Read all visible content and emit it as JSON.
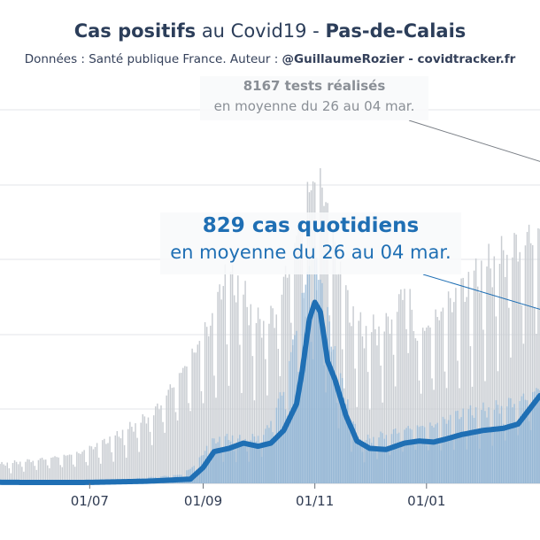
{
  "title": {
    "bold_1": "Cas positifs",
    "normal_1": " au Covid19 - ",
    "bold_2": "Pas-de-Calais"
  },
  "subtitle": {
    "normal": "Données : Santé publique France. Auteur : ",
    "bold": "@GuillaumeRozier - covidtracker.fr"
  },
  "annotations": {
    "tests_value": "8167 tests réalisés",
    "tests_period": "en moyenne du 26 au 04 mar.",
    "cases_value": "829 cas quotidiens",
    "cases_period": "en moyenne du 26 au 04 mar."
  },
  "colors": {
    "tests_bars": "#c9cdd2",
    "cases_bars": "#8fb4d5",
    "cases_line": "#1f6fb4",
    "grid": "#e3e5e8"
  },
  "chart_data": {
    "type": "bar",
    "x_type": "date",
    "x_range": [
      "2020-05-13",
      "2021-03-04"
    ],
    "xtick_dates": [
      "2020-07-01",
      "2020-09-01",
      "2020-11-01",
      "2021-01-01"
    ],
    "xtick_labels": [
      "01/07",
      "01/09",
      "01/11",
      "01/01"
    ],
    "grid": true,
    "series": [
      {
        "kind": "bars",
        "axis": "tests",
        "points": [
          [
            "2020-05-13",
            700
          ],
          [
            "2020-06-05",
            900
          ],
          [
            "2020-06-25",
            1100
          ],
          [
            "2020-07-15",
            1700
          ],
          [
            "2020-08-05",
            2600
          ],
          [
            "2020-08-25",
            4600
          ],
          [
            "2020-09-08",
            6200
          ],
          [
            "2020-09-12",
            7600
          ],
          [
            "2020-09-20",
            7200
          ],
          [
            "2020-10-01",
            5900
          ],
          [
            "2020-10-10",
            6200
          ],
          [
            "2020-10-20",
            8600
          ],
          [
            "2020-10-28",
            10700
          ],
          [
            "2020-11-01",
            11100
          ],
          [
            "2020-11-06",
            10700
          ],
          [
            "2020-11-12",
            8500
          ],
          [
            "2020-11-20",
            6300
          ],
          [
            "2020-11-28",
            5500
          ],
          [
            "2020-12-10",
            5800
          ],
          [
            "2020-12-18",
            6800
          ],
          [
            "2020-12-22",
            8200
          ],
          [
            "2020-12-25",
            5400
          ],
          [
            "2021-01-01",
            5700
          ],
          [
            "2021-01-15",
            6700
          ],
          [
            "2021-02-01",
            7800
          ],
          [
            "2021-02-20",
            8800
          ],
          [
            "2021-03-04",
            9400
          ]
        ]
      },
      {
        "kind": "bars",
        "axis": "cases",
        "points": [
          [
            "2020-05-13",
            20
          ],
          [
            "2020-06-15",
            15
          ],
          [
            "2020-07-20",
            35
          ],
          [
            "2020-08-20",
            80
          ],
          [
            "2020-08-28",
            170
          ],
          [
            "2020-09-05",
            380
          ],
          [
            "2020-09-15",
            420
          ],
          [
            "2020-09-25",
            390
          ],
          [
            "2020-10-05",
            470
          ],
          [
            "2020-10-15",
            880
          ],
          [
            "2020-10-22",
            1450
          ],
          [
            "2020-10-29",
            2000
          ],
          [
            "2020-11-02",
            2050
          ],
          [
            "2020-11-08",
            1500
          ],
          [
            "2020-11-15",
            950
          ],
          [
            "2020-11-25",
            380
          ],
          [
            "2020-12-05",
            430
          ],
          [
            "2020-12-15",
            480
          ],
          [
            "2020-12-25",
            520
          ],
          [
            "2021-01-05",
            530
          ],
          [
            "2021-01-20",
            640
          ],
          [
            "2021-02-05",
            680
          ],
          [
            "2021-02-25",
            800
          ],
          [
            "2021-03-04",
            880
          ]
        ]
      },
      {
        "kind": "line",
        "axis": "cases",
        "points": [
          [
            "2020-05-13",
            10
          ],
          [
            "2020-06-01",
            8
          ],
          [
            "2020-07-01",
            9
          ],
          [
            "2020-08-01",
            20
          ],
          [
            "2020-08-25",
            40
          ],
          [
            "2020-09-01",
            150
          ],
          [
            "2020-09-07",
            300
          ],
          [
            "2020-09-15",
            330
          ],
          [
            "2020-09-23",
            380
          ],
          [
            "2020-10-01",
            350
          ],
          [
            "2020-10-08",
            380
          ],
          [
            "2020-10-15",
            500
          ],
          [
            "2020-10-22",
            750
          ],
          [
            "2020-10-25",
            1050
          ],
          [
            "2020-10-29",
            1550
          ],
          [
            "2020-11-01",
            1710
          ],
          [
            "2020-11-04",
            1620
          ],
          [
            "2020-11-08",
            1150
          ],
          [
            "2020-11-12",
            980
          ],
          [
            "2020-11-18",
            640
          ],
          [
            "2020-11-24",
            400
          ],
          [
            "2020-12-01",
            330
          ],
          [
            "2020-12-10",
            320
          ],
          [
            "2020-12-20",
            380
          ],
          [
            "2020-12-28",
            400
          ],
          [
            "2021-01-05",
            390
          ],
          [
            "2021-01-12",
            420
          ],
          [
            "2021-01-20",
            460
          ],
          [
            "2021-02-01",
            500
          ],
          [
            "2021-02-12",
            520
          ],
          [
            "2021-02-20",
            560
          ],
          [
            "2021-03-04",
            829
          ]
        ]
      }
    ],
    "labels": {
      "tests_value": "8167 tests réalisés",
      "tests_period": "en moyenne du 26 au 04 mar.",
      "cases_value": "829 cas quotidiens",
      "cases_period": "en moyenne du 26 au 04 mar."
    }
  }
}
